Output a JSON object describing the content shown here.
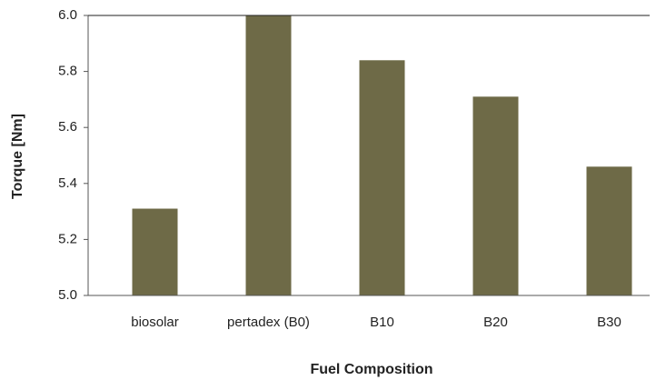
{
  "chart_data": {
    "type": "bar",
    "x_label": "Fuel Composition",
    "y_label": "Torque [Nm]",
    "categories": [
      "biosolar",
      "pertadex (B0)",
      "B10",
      "B20",
      "B30"
    ],
    "values": [
      5.31,
      6.0,
      5.84,
      5.71,
      5.46
    ],
    "color": "#6e6a47",
    "ylim": [
      5,
      6
    ],
    "yticks": [
      {
        "value": 5,
        "label": "5.0"
      },
      5.2,
      5.4,
      5.6,
      5.8,
      {
        "value": 6,
        "label": "6.0"
      }
    ]
  }
}
